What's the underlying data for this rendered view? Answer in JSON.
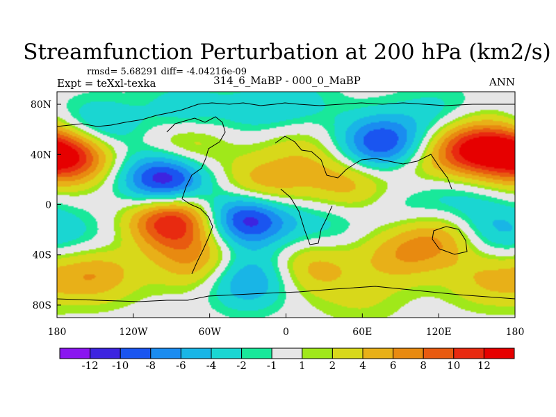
{
  "chart_data": {
    "type": "heatmap",
    "title": "Streamfunction Perturbation at 200 hPa (km2/s)",
    "stats": "rmsd= 5.68291 diff= -4.04216e-09",
    "subtitle_left": "Expt = teXxl-texka",
    "subtitle_center": "314_6_MaBP - 000_0_MaBP",
    "subtitle_right": "ANN",
    "x_range": [
      -180,
      180
    ],
    "y_range": [
      -90,
      90
    ],
    "x_ticks": [
      {
        "value": -180,
        "label": "180"
      },
      {
        "value": -120,
        "label": "120W"
      },
      {
        "value": -60,
        "label": "60W"
      },
      {
        "value": 0,
        "label": "0"
      },
      {
        "value": 60,
        "label": "60E"
      },
      {
        "value": 120,
        "label": "120E"
      },
      {
        "value": 180,
        "label": "180"
      }
    ],
    "y_ticks": [
      {
        "value": 80,
        "label": "80N"
      },
      {
        "value": 40,
        "label": "40N"
      },
      {
        "value": 0,
        "label": "0"
      },
      {
        "value": -40,
        "label": "40S"
      },
      {
        "value": -80,
        "label": "80S"
      }
    ],
    "levels": [
      -12,
      -10,
      -8,
      -6,
      -4,
      -2,
      -1,
      1,
      2,
      4,
      6,
      8,
      10,
      12
    ],
    "level_labels": [
      "-12",
      "-10",
      "-8",
      "-6",
      "-4",
      "-2",
      "-1",
      "1",
      "2",
      "4",
      "6",
      "8",
      "10",
      "12"
    ],
    "colors": [
      "#8a15f0",
      "#3d24e0",
      "#1a55f0",
      "#1a8cf0",
      "#19b5e6",
      "#1ad6d2",
      "#19e89a",
      "#e6e6e6",
      "#a0e81a",
      "#d8d81a",
      "#e8b018",
      "#e88a10",
      "#e85a10",
      "#e82a10",
      "#e60000"
    ],
    "background_band": {
      "min": -1,
      "max": 1,
      "color": "#e6e6e6"
    },
    "centers": [
      {
        "lon": -95,
        "lat": 20,
        "value": -13.5
      },
      {
        "lon": -30,
        "lat": -10,
        "value": -13
      },
      {
        "lon": 75,
        "lat": 48,
        "value": -11
      },
      {
        "lon": -150,
        "lat": 60,
        "value": -6
      },
      {
        "lon": -80,
        "lat": 75,
        "value": -3.5
      },
      {
        "lon": -20,
        "lat": 72,
        "value": -3
      },
      {
        "lon": 10,
        "lat": 80,
        "value": -2.5
      },
      {
        "lon": 120,
        "lat": 72,
        "value": -3
      },
      {
        "lon": -30,
        "lat": -60,
        "value": -7
      },
      {
        "lon": 130,
        "lat": 5,
        "value": -3
      },
      {
        "lon": 160,
        "lat": -20,
        "value": -5
      },
      {
        "lon": 30,
        "lat": -15,
        "value": -3
      },
      {
        "lon": 90,
        "lat": 0,
        "value": -2
      },
      {
        "lon": -155,
        "lat": -28,
        "value": -2
      },
      {
        "lon": -90,
        "lat": -12,
        "value": 13
      },
      {
        "lon": 145,
        "lat": 45,
        "value": 11.5
      },
      {
        "lon": -165,
        "lat": 40,
        "value": 8
      },
      {
        "lon": 180,
        "lat": 40,
        "value": 7
      },
      {
        "lon": -20,
        "lat": 12,
        "value": 7
      },
      {
        "lon": 50,
        "lat": 15,
        "value": 5
      },
      {
        "lon": 100,
        "lat": 30,
        "value": 3
      },
      {
        "lon": -80,
        "lat": 45,
        "value": 5
      },
      {
        "lon": 125,
        "lat": -25,
        "value": 6
      },
      {
        "lon": 90,
        "lat": -40,
        "value": 5
      },
      {
        "lon": -150,
        "lat": -55,
        "value": 6
      },
      {
        "lon": -70,
        "lat": -45,
        "value": 6
      },
      {
        "lon": 20,
        "lat": -50,
        "value": 5
      },
      {
        "lon": 160,
        "lat": -60,
        "value": 4
      },
      {
        "lon": 60,
        "lat": -75,
        "value": 2
      },
      {
        "lon": 0,
        "lat": 55,
        "value": 2
      },
      {
        "lon": 20,
        "lat": 35,
        "value": 2.5
      }
    ]
  }
}
